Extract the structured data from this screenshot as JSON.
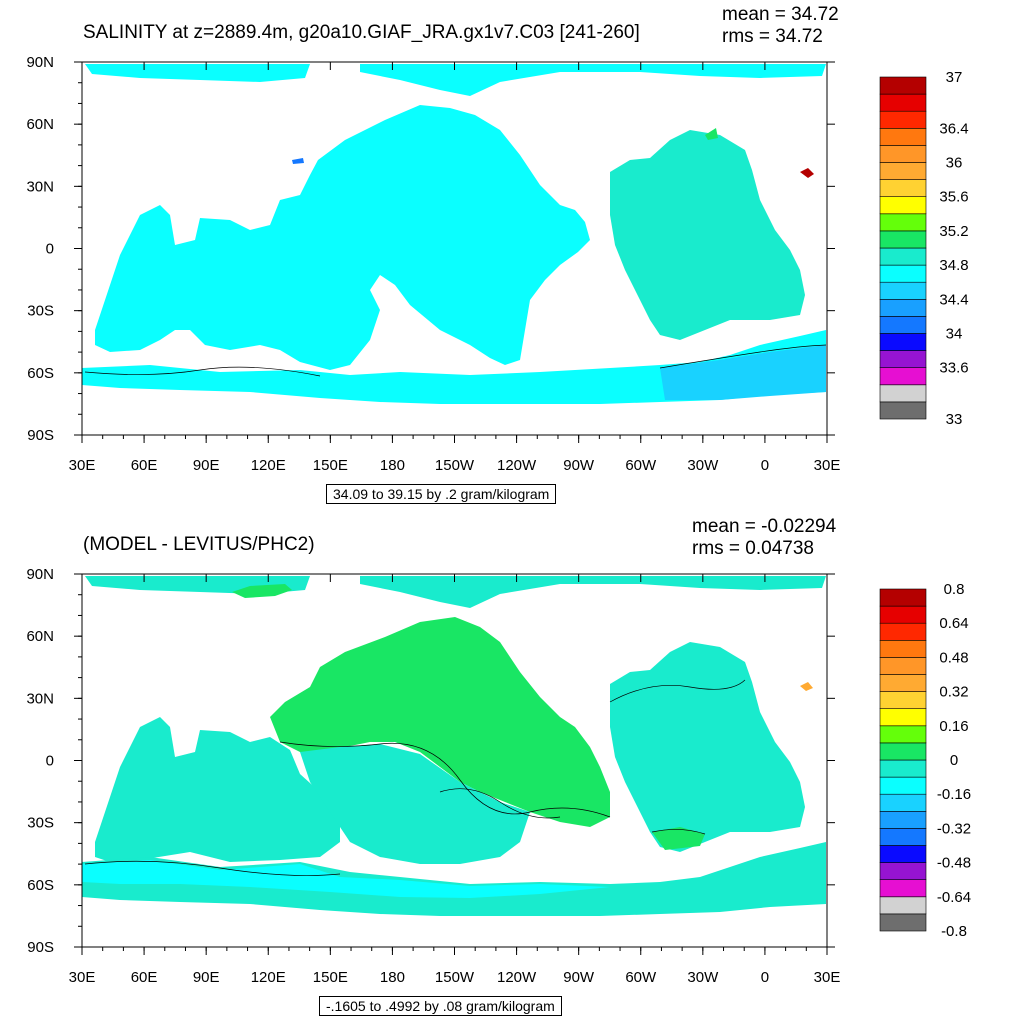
{
  "chart_data": [
    {
      "type": "heatmap",
      "title": "SALINITY at z=2889.4m, g20a10.GIAF_JRA.gx1v7.C03 [241-260]",
      "stats": {
        "mean": "mean = 34.72",
        "rms": "rms = 34.72"
      },
      "range_label": "34.09 to 39.15 by .2 gram/kilogram",
      "x_ticks": [
        "30E",
        "60E",
        "90E",
        "120E",
        "150E",
        "180",
        "150W",
        "120W",
        "90W",
        "60W",
        "30W",
        "0",
        "30E"
      ],
      "y_ticks": [
        "90N",
        "60N",
        "30N",
        "0",
        "30S",
        "60S",
        "90S"
      ],
      "xlim": [
        30,
        390
      ],
      "ylim": [
        -90,
        90
      ],
      "colorbar": {
        "colors": [
          "#6e6e6e",
          "#d2d2d2",
          "#e60fd2",
          "#9614d2",
          "#0a0aff",
          "#1478ff",
          "#19a0ff",
          "#19d2ff",
          "#0affff",
          "#19ebcd",
          "#19e664",
          "#64ff0a",
          "#ffff00",
          "#ffd232",
          "#ffaa32",
          "#ff9628",
          "#ff780f",
          "#ff2800",
          "#e60000",
          "#b40000"
        ],
        "labels": [
          {
            "text": "33",
            "value": 0
          },
          {
            "text": "33.6",
            "value": 3
          },
          {
            "text": "34",
            "value": 5
          },
          {
            "text": "34.4",
            "value": 7
          },
          {
            "text": "34.8",
            "value": 9
          },
          {
            "text": "35.2",
            "value": 11
          },
          {
            "text": "35.6",
            "value": 13
          },
          {
            "text": "36",
            "value": 15
          },
          {
            "text": "36.4",
            "value": 17
          },
          {
            "text": "37",
            "value": 20
          }
        ]
      }
    },
    {
      "type": "heatmap",
      "title": "(MODEL - LEVITUS/PHC2)",
      "stats": {
        "mean": "mean = -0.02294",
        "rms": "rms = 0.04738"
      },
      "range_label": "-.1605 to .4992 by .08 gram/kilogram",
      "x_ticks": [
        "30E",
        "60E",
        "90E",
        "120E",
        "150E",
        "180",
        "150W",
        "120W",
        "90W",
        "60W",
        "30W",
        "0",
        "30E"
      ],
      "y_ticks": [
        "90N",
        "60N",
        "30N",
        "0",
        "30S",
        "60S",
        "90S"
      ],
      "xlim": [
        30,
        390
      ],
      "ylim": [
        -90,
        90
      ],
      "colorbar": {
        "colors": [
          "#6e6e6e",
          "#d2d2d2",
          "#e60fd2",
          "#9614d2",
          "#0a0aff",
          "#1478ff",
          "#19a0ff",
          "#19d2ff",
          "#0affff",
          "#19ebcd",
          "#19e664",
          "#64ff0a",
          "#ffff00",
          "#ffd232",
          "#ffaa32",
          "#ff9628",
          "#ff780f",
          "#ff2800",
          "#e60000",
          "#b40000"
        ],
        "labels": [
          {
            "text": "-0.8",
            "value": 0
          },
          {
            "text": "-0.64",
            "value": 2
          },
          {
            "text": "-0.48",
            "value": 4
          },
          {
            "text": "-0.32",
            "value": 6
          },
          {
            "text": "-0.16",
            "value": 8
          },
          {
            "text": "0",
            "value": 10
          },
          {
            "text": "0.16",
            "value": 12
          },
          {
            "text": "0.32",
            "value": 14
          },
          {
            "text": "0.48",
            "value": 16
          },
          {
            "text": "0.64",
            "value": 18
          },
          {
            "text": "0.8",
            "value": 20
          }
        ]
      }
    }
  ]
}
